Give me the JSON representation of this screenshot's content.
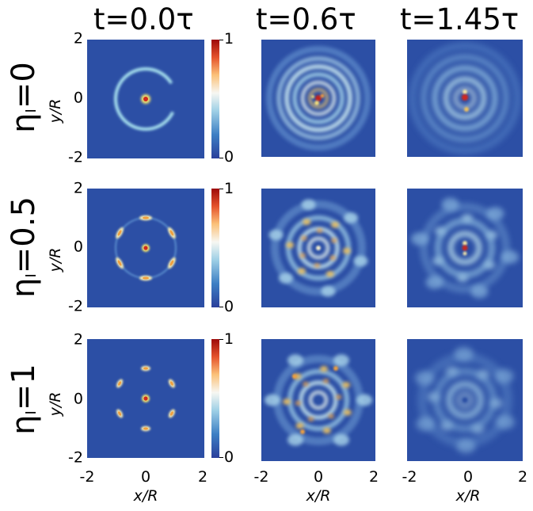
{
  "chart_data": {
    "type": "heatmap",
    "columns": [
      "t=0.0τ",
      "t=0.6τ",
      "t=1.45τ"
    ],
    "rows": [
      {
        "eta": "η",
        "sub": "I",
        "value": "=0"
      },
      {
        "eta": "η",
        "sub": "I",
        "value": "=0.5"
      },
      {
        "eta": "η",
        "sub": "I",
        "value": "=1"
      }
    ],
    "xlabel": "x/R",
    "ylabel": "y/R",
    "x_ticks": [
      "-2",
      "0",
      "2"
    ],
    "y_ticks": [
      "2",
      "0",
      "-2"
    ],
    "xlim": [
      -2,
      2
    ],
    "ylim": [
      -2,
      2
    ],
    "colorbar": {
      "min": "0",
      "max": "1",
      "range": [
        0,
        1
      ],
      "colormap": "RdYlBu_r"
    },
    "background_color": "#2c4fa5"
  }
}
